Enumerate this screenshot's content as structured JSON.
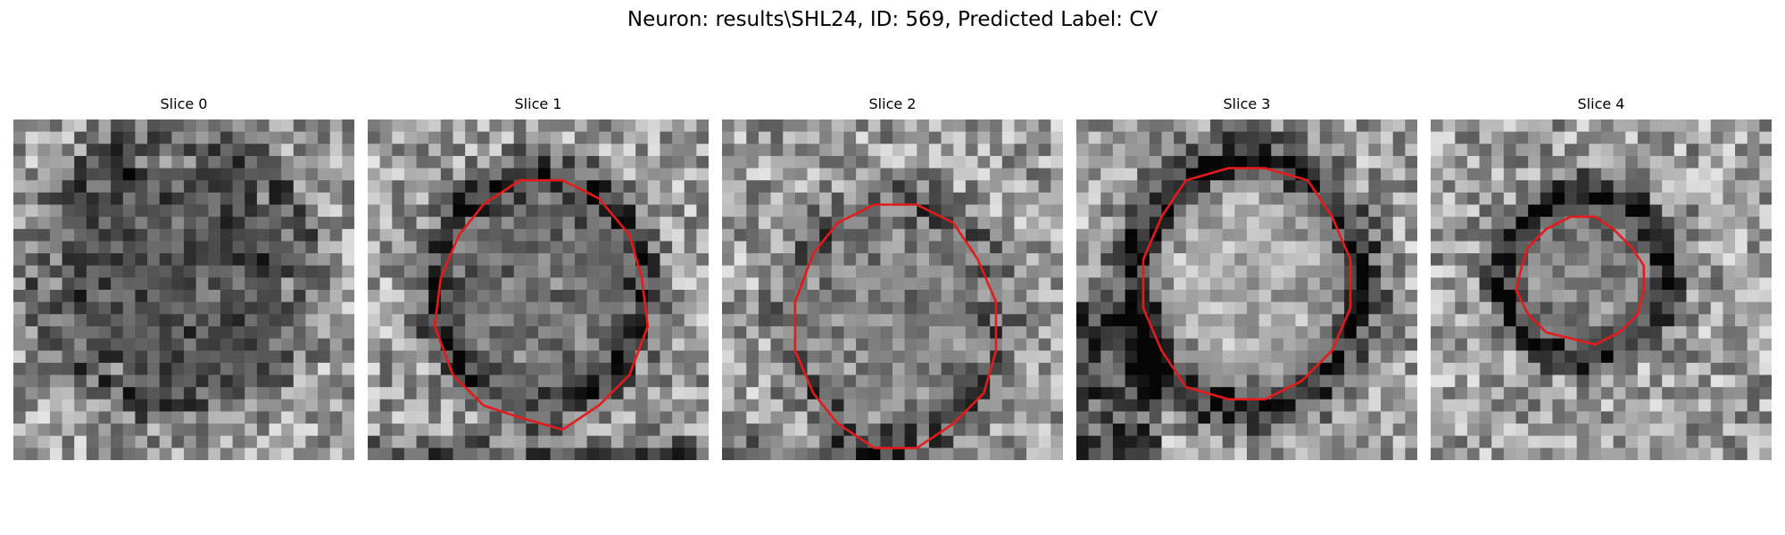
{
  "figure": {
    "title": "Neuron: results\\SHL24, ID: 569, Predicted Label: CV"
  },
  "colors": {
    "contour": "#e41a1c",
    "background": "#ffffff"
  },
  "panels": [
    {
      "title": "Slice 0"
    },
    {
      "title": "Slice 1"
    },
    {
      "title": "Slice 2"
    },
    {
      "title": "Slice 3"
    },
    {
      "title": "Slice 4"
    }
  ]
}
